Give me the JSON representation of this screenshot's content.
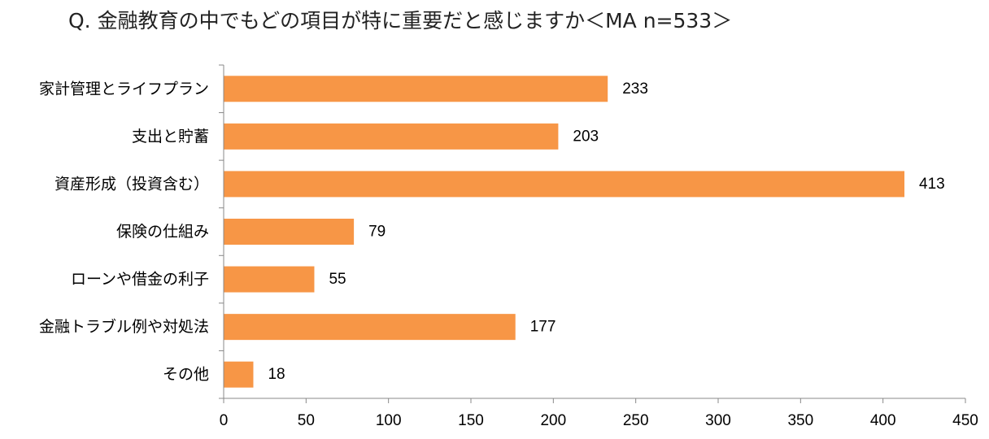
{
  "chart_data": {
    "type": "bar",
    "orientation": "horizontal",
    "title": "Q. 金融教育の中でもどの項目が特に重要だと感じますか＜MA n=533＞",
    "categories": [
      "家計管理とライフプラン",
      "支出と貯蓄",
      "資産形成（投資含む）",
      "保険の仕組み",
      "ローンや借金の利子",
      "金融トラブル例や対処法",
      "その他"
    ],
    "values": [
      233,
      203,
      413,
      79,
      55,
      177,
      18
    ],
    "value_labels": [
      "233",
      "203",
      "413",
      "79",
      "55",
      "177",
      "18"
    ],
    "xlim": [
      0,
      450
    ],
    "xticks": [
      0,
      50,
      100,
      150,
      200,
      250,
      300,
      350,
      400,
      450
    ],
    "xtick_labels": [
      "0",
      "50",
      "100",
      "150",
      "200",
      "250",
      "300",
      "350",
      "400",
      "450"
    ],
    "bar_color": "#F79646",
    "grid": false,
    "legend": "none"
  }
}
